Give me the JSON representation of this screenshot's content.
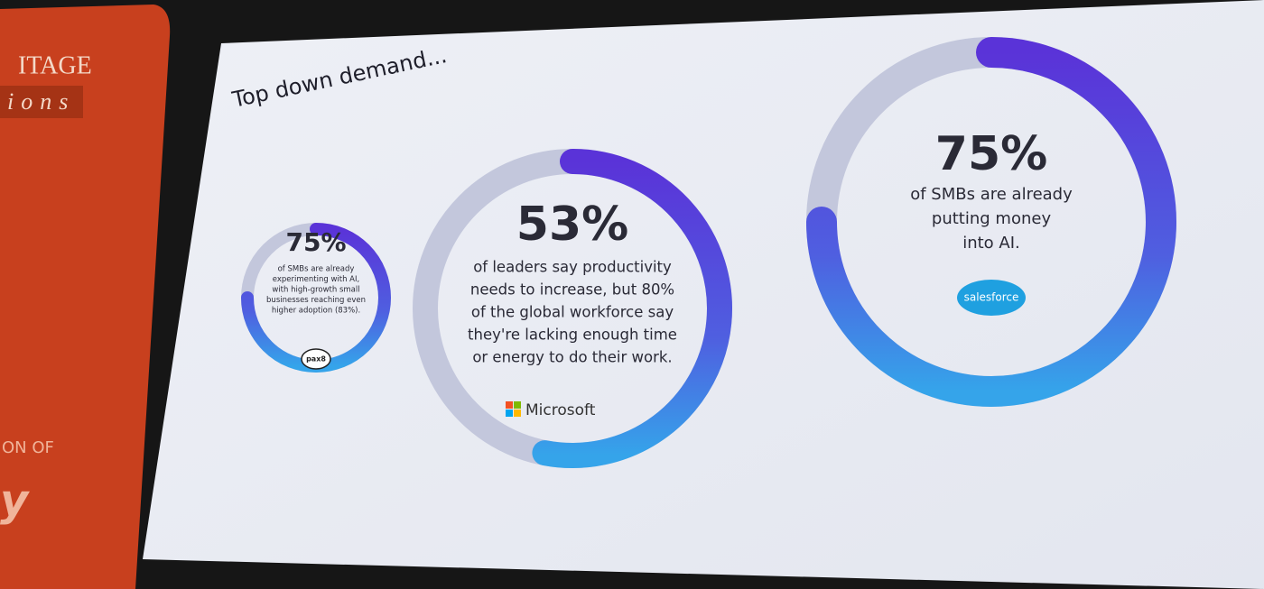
{
  "background": {
    "banner_lines": [
      "ITAGE",
      "ions",
      "ON OF",
      "y"
    ]
  },
  "slide": {
    "title": "Top down demand...",
    "stats": [
      {
        "value": 75,
        "label": "75%",
        "lines": [
          "of SMBs are already",
          "experimenting with AI,",
          "with high-growth small",
          "businesses reaching even",
          "higher adoption (83%)."
        ],
        "source": "pax8"
      },
      {
        "value": 53,
        "label": "53%",
        "lines": [
          "of leaders say productivity",
          "needs to increase, but 80%",
          "of the global workforce say",
          "they're lacking enough time",
          "or energy to do their work."
        ],
        "source": "Microsoft"
      },
      {
        "value": 75,
        "label": "75%",
        "lines": [
          "of SMBs are already",
          "putting money",
          "into AI."
        ],
        "source": "salesforce"
      }
    ]
  }
}
